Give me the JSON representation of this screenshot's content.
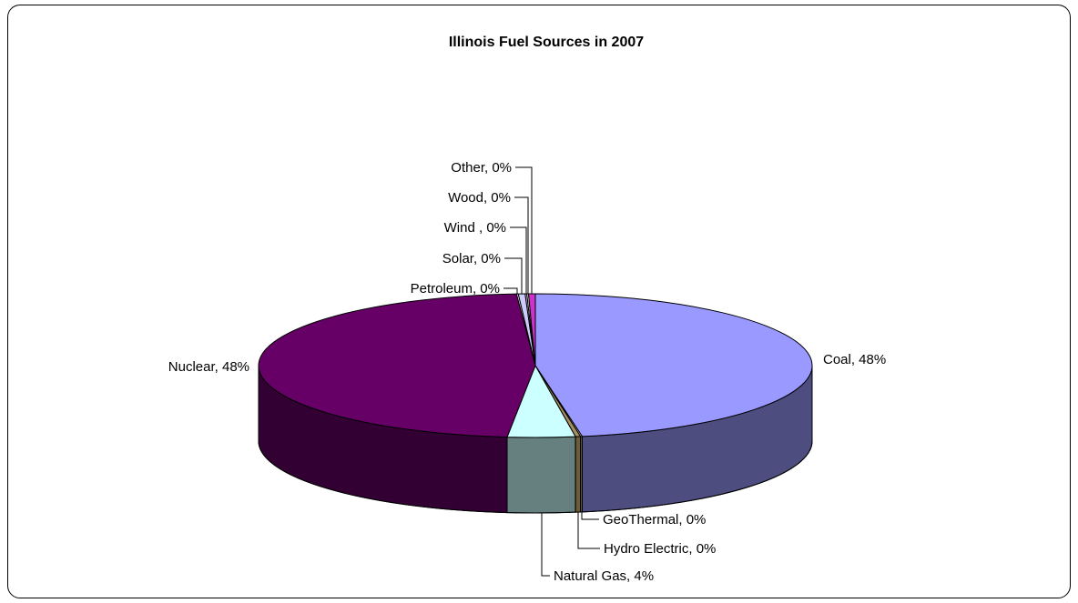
{
  "chart_data": {
    "type": "pie",
    "variant": "3d",
    "title": "Illinois Fuel Sources in 2007",
    "slices": [
      {
        "name": "Coal",
        "label": "Coal, 48%",
        "value": 48,
        "color": "#9999ff",
        "side_color": "#4d4d80"
      },
      {
        "name": "GeoThermal",
        "label": "GeoThermal, 0%",
        "value": 0.1,
        "color": "#ffffcc",
        "side_color": "#808066"
      },
      {
        "name": "Hydro Electric",
        "label": "Hydro Electric, 0%",
        "value": 0.3,
        "color": "#a58d62",
        "side_color": "#6d5c36"
      },
      {
        "name": "Natural Gas",
        "label": "Natural Gas, 4%",
        "value": 4,
        "color": "#ccffff",
        "side_color": "#668080"
      },
      {
        "name": "Nuclear",
        "label": "Nuclear, 48%",
        "value": 48,
        "color": "#660066",
        "side_color": "#330033"
      },
      {
        "name": "Petroleum",
        "label": "Petroleum, 0%",
        "value": 0.1,
        "color": "#ffffff",
        "side_color": "#808080"
      },
      {
        "name": "Solar",
        "label": "Solar, 0%",
        "value": 0.4,
        "color": "#ccccff",
        "side_color": "#666680"
      },
      {
        "name": "Wind",
        "label": "Wind , 0%",
        "value": 0.1,
        "color": "#ccccff",
        "side_color": "#666680"
      },
      {
        "name": "Wood",
        "label": "Wood, 0%",
        "value": 0.1,
        "color": "#ffffcc",
        "side_color": "#808066"
      },
      {
        "name": "Other",
        "label": "Other, 0%",
        "value": 0.4,
        "color": "#cc33cc",
        "side_color": "#661a66"
      }
    ],
    "legend": "none"
  }
}
